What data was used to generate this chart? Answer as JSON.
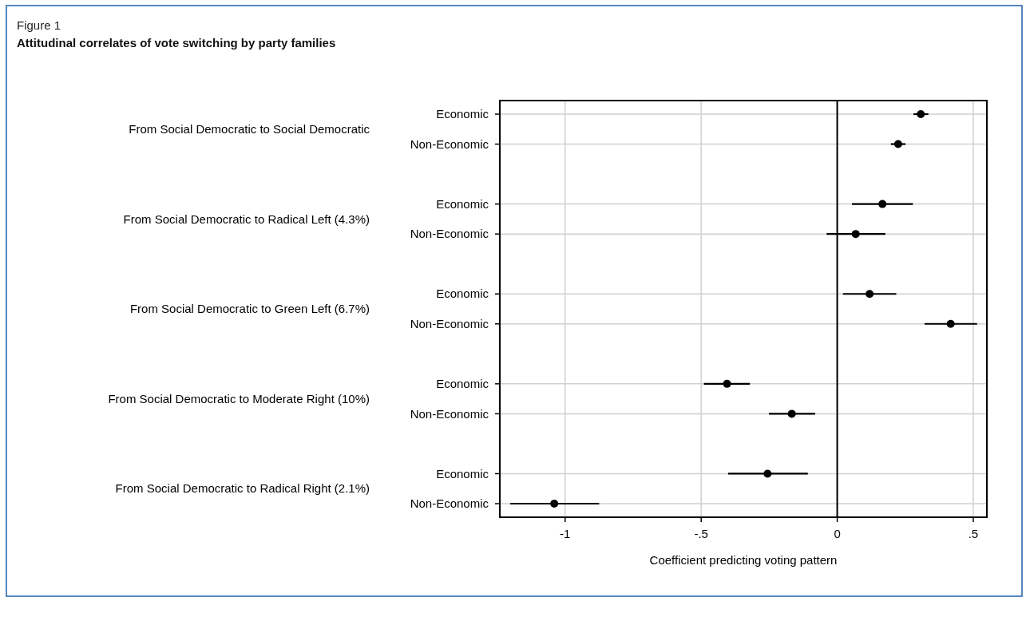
{
  "chart_data": {
    "type": "scatter",
    "orientation": "horizontal",
    "subtitle": "Figure 1",
    "title": "Attitudinal correlates of vote switching by party families",
    "xlabel": "Coefficient predicting voting pattern",
    "categories": [
      "Economic",
      "Non-Economic",
      "Economic",
      "Non-Economic",
      "Economic",
      "Non-Economic",
      "Economic",
      "Non-Economic",
      "Economic",
      "Non-Economic"
    ],
    "series": [
      {
        "color": "#000000",
        "values": [
          0.307,
          0.224,
          0.166,
          0.068,
          0.119,
          0.417,
          -0.405,
          -0.167,
          -0.256,
          -1.04
        ],
        "errors": [
          [
            0.28,
            0.335
          ],
          [
            0.197,
            0.251
          ],
          [
            0.054,
            0.278
          ],
          [
            -0.039,
            0.177
          ],
          [
            0.021,
            0.217
          ],
          [
            0.321,
            0.514
          ],
          [
            -0.49,
            -0.321
          ],
          [
            -0.251,
            -0.081
          ],
          [
            -0.401,
            -0.108
          ],
          [
            -1.202,
            -0.875
          ]
        ]
      }
    ],
    "annotations": [
      "From Social Democratic to Social Democratic",
      "From Social Democratic to Radical Left (4.3%)",
      "From Social Democratic to Green Left (6.7%)",
      "From Social Democratic to Moderate Right (10%)",
      "From Social Democratic to Radical Right (2.1%)"
    ],
    "xlim": [
      -1.24,
      0.55
    ],
    "xticks": [
      {
        "value": -1,
        "label": "-1"
      },
      {
        "value": -0.5,
        "label": "-.5"
      },
      0,
      {
        "value": 0.5,
        "label": ".5"
      }
    ],
    "ref_lines": [
      {
        "axis": "x",
        "value": 0,
        "color": "#000000"
      }
    ],
    "grid": true,
    "marker": "circle"
  }
}
